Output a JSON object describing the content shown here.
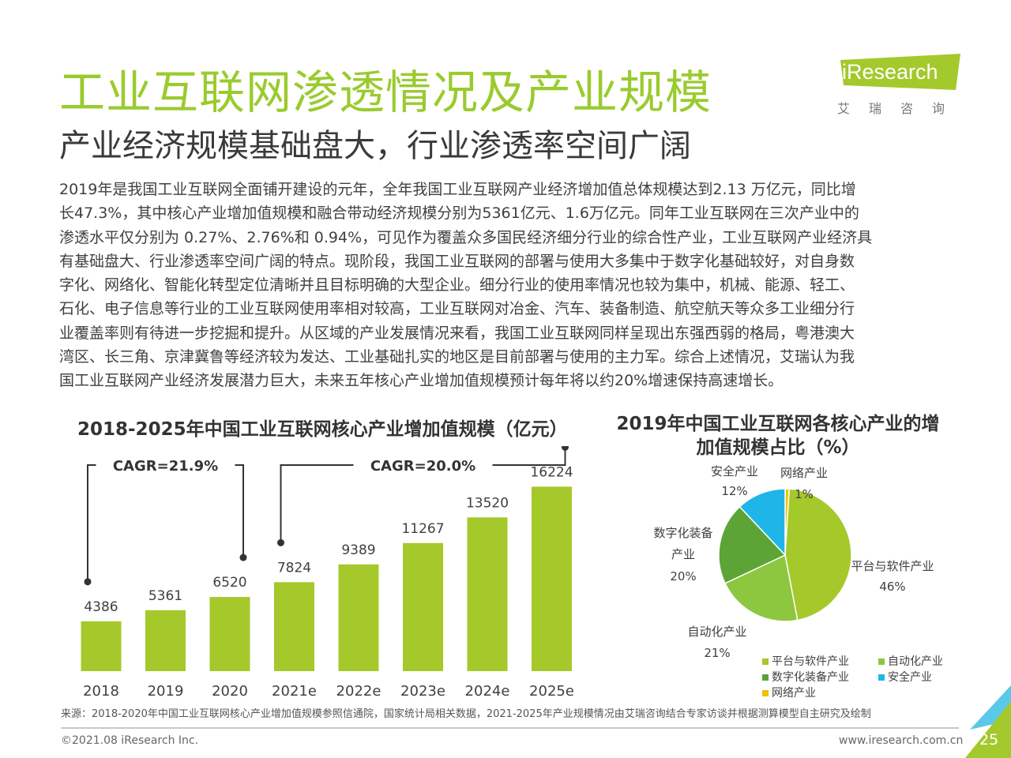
{
  "title": "工业互联网渗透情况及产业规模",
  "subtitle": "产业经济规模基础盘大，行业渗透率空间广阔",
  "logo": {
    "text": "iResearch",
    "cn": "艾瑞咨询"
  },
  "paragraph": [
    "2019年是我国工业互联网全面铺开建设的元年，全年我国工业互联网产业经济增加值总体规模达到2.13 万亿元，同比增",
    "长47.3%，其中核心产业增加值规模和融合带动经济规模分别为5361亿元、1.6万亿元。同年工业互联网在三次产业中的",
    "渗透水平仅分别为 0.27%、2.76%和 0.94%，可见作为覆盖众多国民经济细分行业的综合性产业，工业互联网产业经济具",
    "有基础盘大、行业渗透率空间广阔的特点。现阶段，我国工业互联网的部署与使用大多集中于数字化基础较好，对自身数",
    "字化、网络化、智能化转型定位清晰并且目标明确的大型企业。细分行业的使用率情况也较为集中，机械、能源、轻工、",
    "石化、电子信息等行业的工业互联网使用率相对较高，工业互联网对冶金、汽车、装备制造、航空航天等众多工业细分行",
    "业覆盖率则有待进一步挖掘和提升。从区域的产业发展情况来看，我国工业互联网同样呈现出东强西弱的格局，粤港澳大",
    "湾区、长三角、京津冀鲁等经济较为发达、工业基础扎实的地区是目前部署与使用的主力军。综合上述情况，艾瑞认为我",
    "国工业互联网产业经济发展潜力巨大，未来五年核心产业增加值规模预计每年将以约20%增速保持高速增长。"
  ],
  "colors": {
    "accent": "#9ACB2E",
    "bar": "#A5C82A"
  },
  "chart_data": [
    {
      "type": "bar",
      "title": "2018-2025年中国工业互联网核心产业增加值规模（亿元）",
      "categories": [
        "2018",
        "2019",
        "2020",
        "2021e",
        "2022e",
        "2023e",
        "2024e",
        "2025e"
      ],
      "values": [
        4386,
        5361,
        6520,
        7824,
        9389,
        11267,
        13520,
        16224
      ],
      "annotations": [
        {
          "text": "CAGR=21.9%",
          "from": "2018",
          "to": "2020"
        },
        {
          "text": "CAGR=20.0%",
          "from": "2021e",
          "to": "2025e"
        }
      ],
      "grid": false
    },
    {
      "type": "pie",
      "title": "2019年中国工业互联网各核心产业的增加值规模占比（%）",
      "slices": [
        {
          "label": "平台与软件产业",
          "value": 46,
          "color": "#A5C82A"
        },
        {
          "label": "自动化产业",
          "value": 21,
          "color": "#8DC63F"
        },
        {
          "label": "数字化装备产业",
          "value": 20,
          "color": "#5DA437"
        },
        {
          "label": "安全产业",
          "value": 12,
          "color": "#1EB6E8"
        },
        {
          "label": "网络产业",
          "value": 1,
          "color": "#F5C000"
        }
      ],
      "legend_position": "bottom-right"
    }
  ],
  "footer": {
    "source": "来源：2018-2020年中国工业互联网核心产业增加值规模参照信通院，国家统计局相关数据，2021-2025年产业规模情况由艾瑞咨询结合专家访谈并根据测算模型自主研究及绘制",
    "copyright": "©2021.08 iResearch Inc.",
    "url": "www.iresearch.com.cn",
    "page": "25"
  }
}
